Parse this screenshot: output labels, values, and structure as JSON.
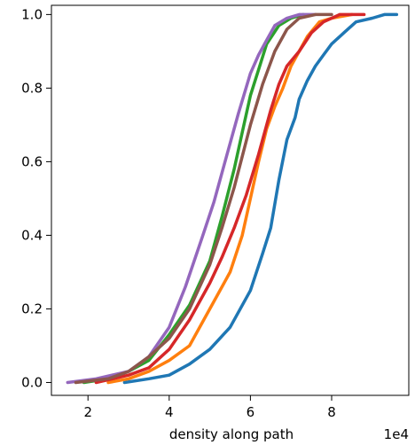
{
  "chart_data": {
    "type": "line",
    "xlabel": "density along path",
    "xscale_note": "1e4",
    "ylabel": "",
    "xlim": [
      1.1,
      9.9
    ],
    "ylim": [
      -0.035,
      1.025
    ],
    "x_ticks": [
      2,
      4,
      6,
      8
    ],
    "x_tick_labels": [
      "2",
      "4",
      "6",
      "8"
    ],
    "y_ticks": [
      0.0,
      0.2,
      0.4,
      0.6,
      0.8,
      1.0
    ],
    "y_tick_labels": [
      "0.0",
      "0.2",
      "0.4",
      "0.6",
      "0.8",
      "1.0"
    ],
    "grid": false,
    "series": [
      {
        "color": "#1f77b4",
        "x": [
          2.9,
          3.5,
          4.0,
          4.5,
          5.0,
          5.5,
          6.0,
          6.3,
          6.5,
          6.7,
          6.9,
          7.1,
          7.2,
          7.4,
          7.6,
          7.8,
          8.0,
          8.3,
          8.6,
          9.0,
          9.3,
          9.6
        ],
        "y": [
          0.0,
          0.01,
          0.02,
          0.05,
          0.09,
          0.15,
          0.25,
          0.35,
          0.42,
          0.55,
          0.66,
          0.72,
          0.77,
          0.82,
          0.86,
          0.89,
          0.92,
          0.95,
          0.98,
          0.99,
          1.0,
          1.0
        ]
      },
      {
        "color": "#ff7f0e",
        "x": [
          2.5,
          3.0,
          3.5,
          4.0,
          4.5,
          5.0,
          5.5,
          5.8,
          6.0,
          6.2,
          6.4,
          6.6,
          6.8,
          7.0,
          7.2,
          7.4,
          7.7,
          8.0,
          8.5
        ],
        "y": [
          0.0,
          0.01,
          0.03,
          0.06,
          0.1,
          0.2,
          0.3,
          0.4,
          0.5,
          0.6,
          0.69,
          0.75,
          0.8,
          0.86,
          0.9,
          0.94,
          0.98,
          0.99,
          1.0
        ]
      },
      {
        "color": "#2ca02c",
        "x": [
          1.9,
          2.5,
          3.0,
          3.5,
          4.0,
          4.5,
          5.0,
          5.3,
          5.6,
          5.8,
          6.0,
          6.2,
          6.4,
          6.7,
          7.0,
          7.3
        ],
        "y": [
          0.0,
          0.01,
          0.03,
          0.06,
          0.13,
          0.21,
          0.33,
          0.45,
          0.58,
          0.68,
          0.78,
          0.85,
          0.92,
          0.97,
          0.99,
          1.0
        ]
      },
      {
        "color": "#d62728",
        "x": [
          2.2,
          3.0,
          3.5,
          4.0,
          4.5,
          5.0,
          5.3,
          5.6,
          5.9,
          6.2,
          6.5,
          6.7,
          6.9,
          7.2,
          7.5,
          7.8,
          8.2,
          8.8
        ],
        "y": [
          0.0,
          0.02,
          0.04,
          0.09,
          0.17,
          0.27,
          0.34,
          0.42,
          0.51,
          0.62,
          0.74,
          0.81,
          0.86,
          0.9,
          0.95,
          0.98,
          1.0,
          1.0
        ]
      },
      {
        "color": "#9467bd",
        "x": [
          1.5,
          2.2,
          3.0,
          3.5,
          4.0,
          4.4,
          4.8,
          5.1,
          5.4,
          5.7,
          6.0,
          6.2,
          6.4,
          6.6,
          6.9,
          7.2,
          7.6
        ],
        "y": [
          0.0,
          0.01,
          0.03,
          0.07,
          0.15,
          0.26,
          0.39,
          0.49,
          0.61,
          0.73,
          0.84,
          0.89,
          0.93,
          0.97,
          0.99,
          1.0,
          1.0
        ]
      },
      {
        "color": "#8c564b",
        "x": [
          1.7,
          2.5,
          3.0,
          3.5,
          4.0,
          4.5,
          5.0,
          5.3,
          5.6,
          6.0,
          6.3,
          6.6,
          6.9,
          7.2,
          7.6,
          8.0
        ],
        "y": [
          0.0,
          0.01,
          0.03,
          0.07,
          0.12,
          0.2,
          0.32,
          0.42,
          0.53,
          0.7,
          0.81,
          0.9,
          0.96,
          0.99,
          1.0,
          1.0
        ]
      }
    ]
  }
}
